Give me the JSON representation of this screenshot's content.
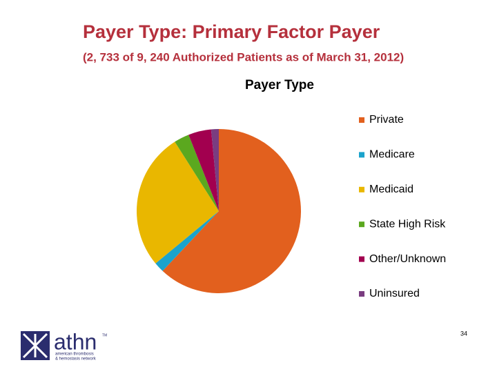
{
  "header": {
    "title": "Payer Type: Primary Factor Payer",
    "subtitle": "(2, 733 of 9, 240 Authorized Patients as of March 31, 2012)"
  },
  "chart_data": {
    "type": "pie",
    "title": "Payer Type",
    "categories": [
      "Private",
      "Medicare",
      "Medicaid",
      "State High Risk",
      "Other/Unknown",
      "Uninsured"
    ],
    "values": [
      62,
      2,
      27,
      3,
      4.5,
      1.5
    ],
    "colors": [
      "#e2601e",
      "#1ba3cc",
      "#e9b700",
      "#5ba81f",
      "#a2004f",
      "#7a3d80"
    ],
    "legend": "right"
  },
  "footer": {
    "page_number": "34",
    "logo": "athn",
    "trademark": "TM",
    "logo_line1": "american thrombosis",
    "logo_line2": "& hemostasis network"
  }
}
